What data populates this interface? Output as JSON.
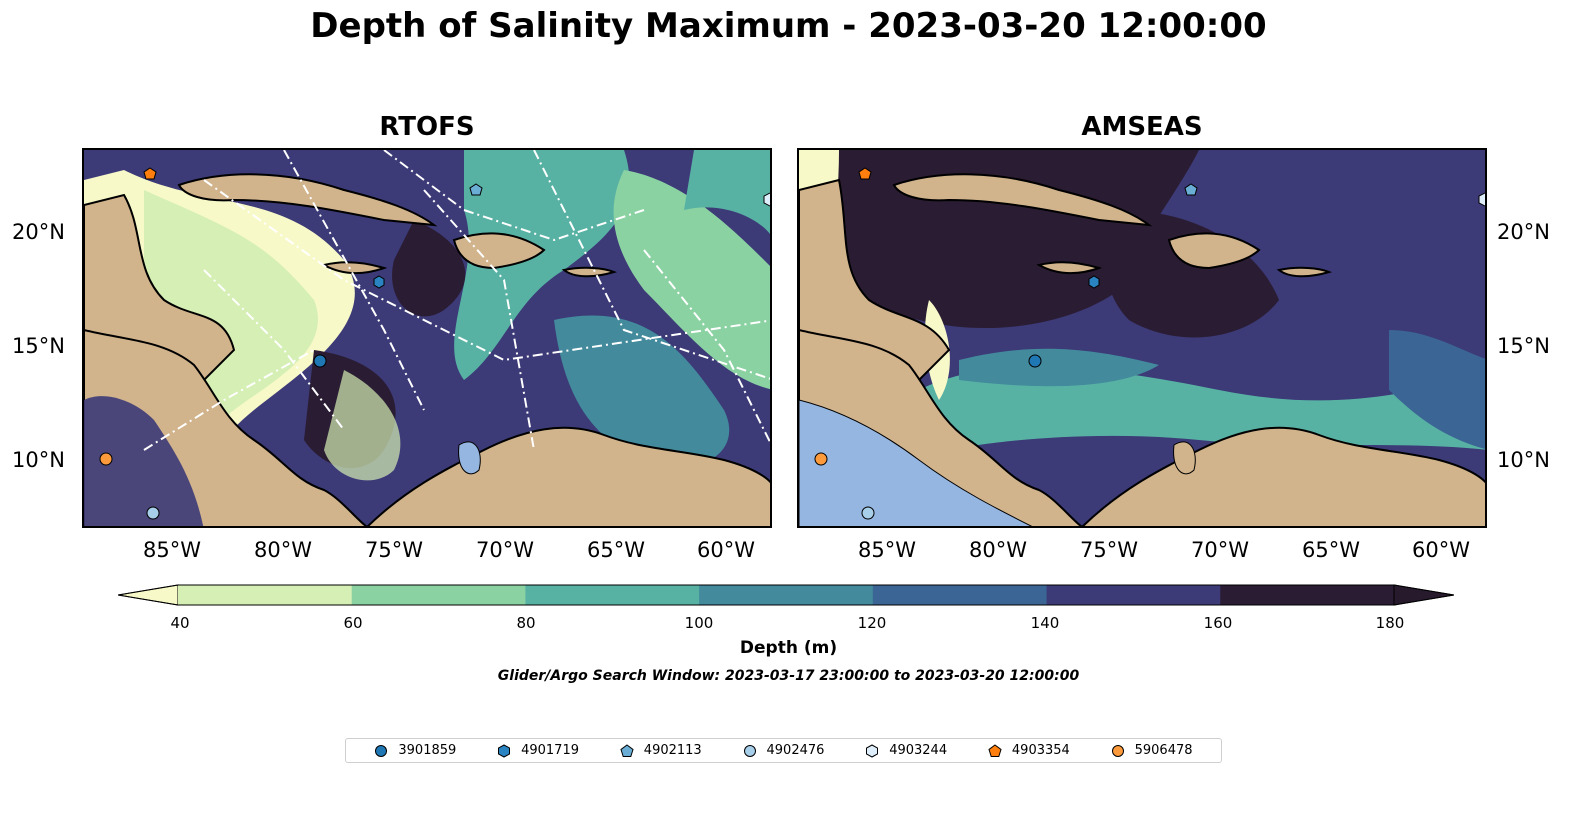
{
  "figure": {
    "title": "Depth of Salinity Maximum - 2023-03-20 12:00:00",
    "search_window": "Glider/Argo Search Window: 2023-03-17 23:00:00 to 2023-03-20 12:00:00"
  },
  "panels": [
    {
      "title": "RTOFS",
      "dominant_color": "#3c3a77"
    },
    {
      "title": "AMSEAS",
      "dominant_color": "#2a1c33"
    }
  ],
  "axes": {
    "lat_labels": [
      "20°N",
      "15°N",
      "10°N"
    ],
    "lon_labels": [
      "85°W",
      "80°W",
      "75°W",
      "70°W",
      "65°W",
      "60°W"
    ]
  },
  "colorbar": {
    "label": "Depth (m)",
    "ticks": [
      "40",
      "60",
      "80",
      "100",
      "120",
      "140",
      "160",
      "180"
    ],
    "colors": [
      "#f8f9c9",
      "#d5efb5",
      "#8bd2a3",
      "#58b2a4",
      "#428a9c",
      "#3b6594",
      "#3c3a77",
      "#2a1c33",
      "#271a2d"
    ]
  },
  "palette": {
    "land": "#d1b38c",
    "water_land": "#94b6e1",
    "coast": "#000000"
  },
  "legend": {
    "items": [
      {
        "label": "3901859",
        "marker": "circle",
        "color": "#1f77b4"
      },
      {
        "label": "4901719",
        "marker": "hexagon",
        "color": "#2b84c2"
      },
      {
        "label": "4902113",
        "marker": "pentagon",
        "color": "#6aaed6"
      },
      {
        "label": "4902476",
        "marker": "circle",
        "color": "#a8cfea"
      },
      {
        "label": "4903244",
        "marker": "hexagon",
        "color": "#deeefa"
      },
      {
        "label": "4903354",
        "marker": "pentagon",
        "color": "#ff7f0e"
      },
      {
        "label": "5906478",
        "marker": "circle",
        "color": "#fd9a3c"
      }
    ]
  }
}
